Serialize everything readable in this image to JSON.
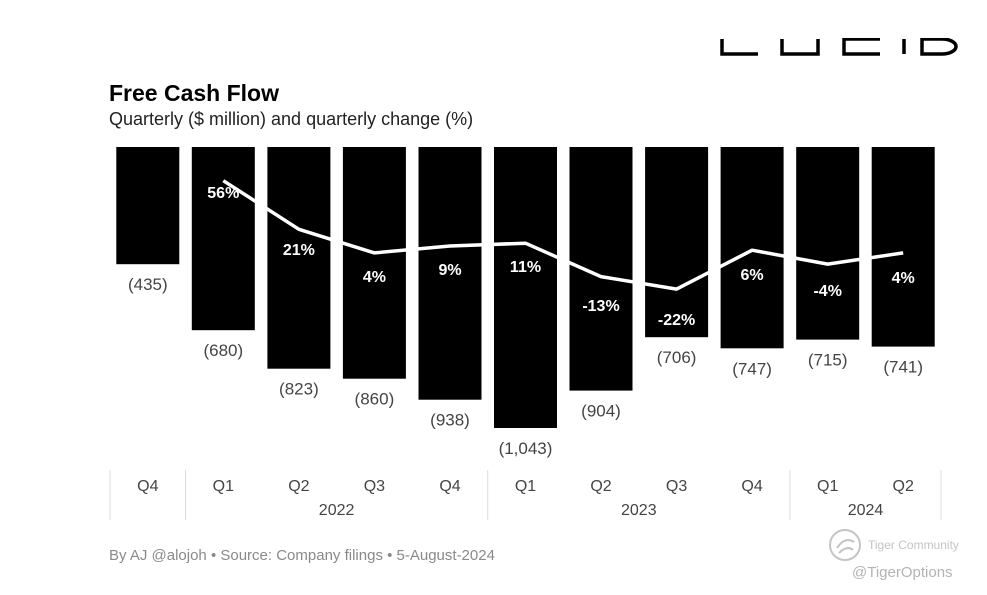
{
  "brand": {
    "logo_text": "LUCID"
  },
  "header": {
    "title": "Free Cash Flow",
    "subtitle": "Quarterly ($ million) and quarterly change (%)"
  },
  "footer": {
    "credit": "By AJ @alojoh • Source: Company filings • 5-August-2024"
  },
  "watermark": {
    "brand": "Tiger Community",
    "handle": "@TigerOptions"
  },
  "colors": {
    "bar": "#000000",
    "line": "#ffffff",
    "axis_text": "#444444",
    "grid": "#dddddd"
  },
  "chart_data": {
    "type": "bar",
    "title": "Free Cash Flow",
    "subtitle": "Quarterly ($ million) and quarterly change (%)",
    "categories": [
      "Q4",
      "Q1",
      "Q2",
      "Q3",
      "Q4",
      "Q1",
      "Q2",
      "Q3",
      "Q4",
      "Q1",
      "Q2"
    ],
    "years": [
      {
        "label": "",
        "quarters": 1
      },
      {
        "label": "2022",
        "quarters": 4
      },
      {
        "label": "2023",
        "quarters": 4
      },
      {
        "label": "2024",
        "quarters": 2
      }
    ],
    "series": [
      {
        "name": "Free cash flow ($ million)",
        "type": "bar",
        "values": [
          -435,
          -680,
          -823,
          -860,
          -938,
          -1043,
          -904,
          -706,
          -747,
          -715,
          -741
        ],
        "labels": [
          "(435)",
          "(680)",
          "(823)",
          "(860)",
          "(938)",
          "(1,043)",
          "(904)",
          "(706)",
          "(747)",
          "(715)",
          "(741)"
        ]
      },
      {
        "name": "Quarterly change (%)",
        "type": "line",
        "values": [
          null,
          56,
          21,
          4,
          9,
          11,
          -13,
          -22,
          6,
          -4,
          4
        ],
        "labels": [
          "",
          "56%",
          "21%",
          "4%",
          "9%",
          "11%",
          "-13%",
          "-22%",
          "6%",
          "-4%",
          "4%"
        ]
      }
    ],
    "ylim": [
      -1100,
      0
    ],
    "pct_ylim": [
      -60,
      90
    ],
    "xlabel": "",
    "ylabel": ""
  }
}
